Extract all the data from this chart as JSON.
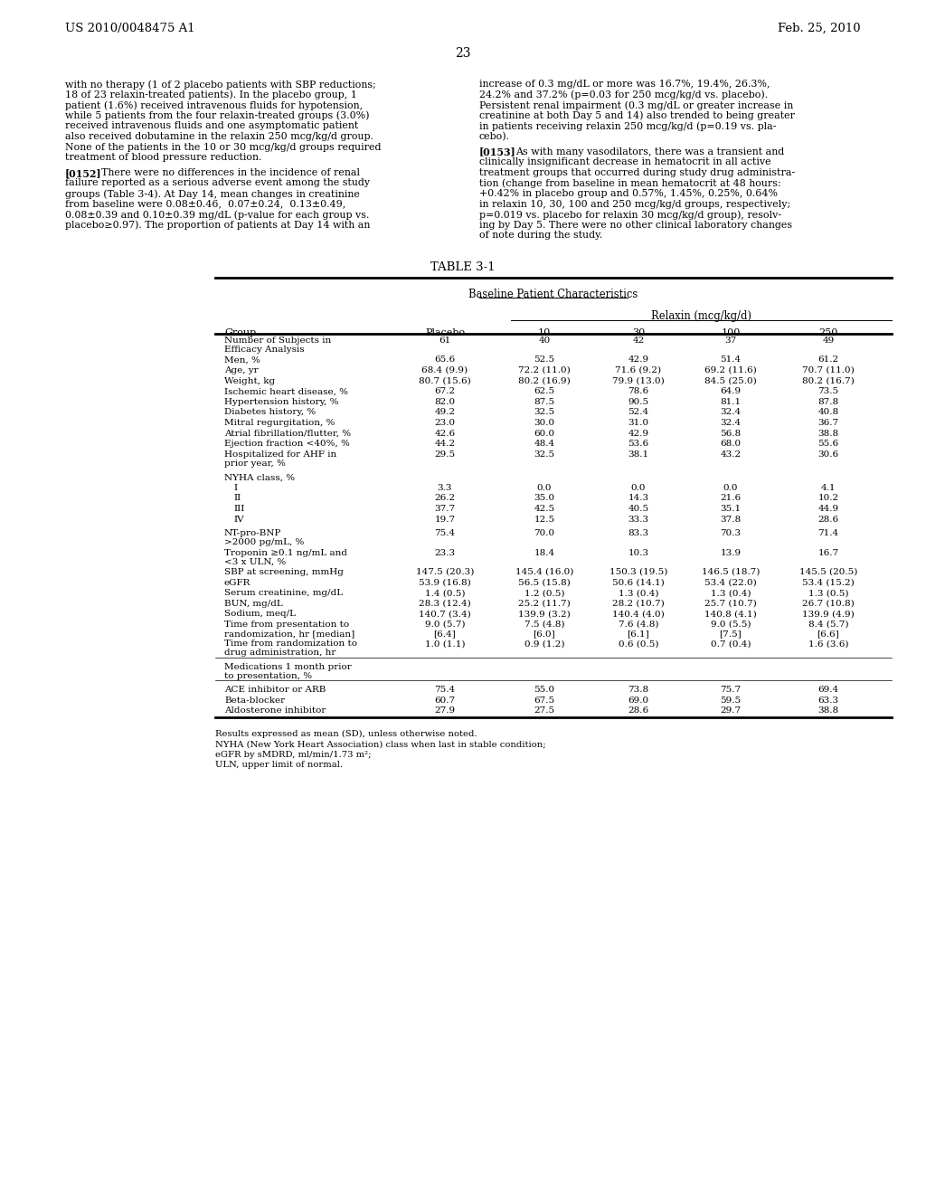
{
  "header_left": "US 2010/0048475 A1",
  "header_right": "Feb. 25, 2010",
  "page_number": "23",
  "para1_lines": [
    "with no therapy (1 of 2 placebo patients with SBP reductions;",
    "18 of 23 relaxin-treated patients). In the placebo group, 1",
    "patient (1.6%) received intravenous fluids for hypotension,",
    "while 5 patients from the four relaxin-treated groups (3.0%)",
    "received intravenous fluids and one asymptomatic patient",
    "also received dobutamine in the relaxin 250 mcg/kg/d group.",
    "None of the patients in the 10 or 30 mcg/kg/d groups required",
    "treatment of blood pressure reduction."
  ],
  "para2_tag": "[0152]",
  "para2_lines": [
    "There were no differences in the incidence of renal",
    "failure reported as a serious adverse event among the study",
    "groups (Table 3-4). At Day 14, mean changes in creatinine",
    "from baseline were 0.08±0.46,  0.07±0.24,  0.13±0.49,",
    "0.08±0.39 and 0.10±0.39 mg/dL (p-value for each group vs.",
    "placebo≥0.97). The proportion of patients at Day 14 with an"
  ],
  "para3_lines": [
    "increase of 0.3 mg/dL or more was 16.7%, 19.4%, 26.3%,",
    "24.2% and 37.2% (p=0.03 for 250 mcg/kg/d vs. placebo).",
    "Persistent renal impairment (0.3 mg/dL or greater increase in",
    "creatinine at both Day 5 and 14) also trended to being greater",
    "in patients receiving relaxin 250 mcg/kg/d (p=0.19 vs. pla-",
    "cebo)."
  ],
  "para4_tag": "[0153]",
  "para4_lines": [
    "As with many vasodilators, there was a transient and",
    "clinically insignificant decrease in hematocrit in all active",
    "treatment groups that occurred during study drug administra-",
    "tion (change from baseline in mean hematocrit at 48 hours:",
    "+0.42% in placebo group and 0.57%, 1.45%, 0.25%, 0.64%",
    "in relaxin 10, 30, 100 and 250 mcg/kg/d groups, respectively;",
    "p=0.019 vs. placebo for relaxin 30 mcg/kg/d group), resolv-",
    "ing by Day 5. There were no other clinical laboratory changes",
    "of note during the study."
  ],
  "table_title": "TABLE 3-1",
  "table_subtitle": "Baseline Patient Characteristics",
  "table_col_header1": "Relaxin (mcg/kg/d)",
  "col_headers": [
    "Group",
    "Placebo",
    "10",
    "30",
    "100",
    "250"
  ],
  "table_rows": [
    [
      "Number of Subjects in\nEfficacy Analysis",
      "61",
      "40",
      "42",
      "37",
      "49"
    ],
    [
      "Men, %",
      "65.6",
      "52.5",
      "42.9",
      "51.4",
      "61.2"
    ],
    [
      "Age, yr",
      "68.4 (9.9)",
      "72.2 (11.0)",
      "71.6 (9.2)",
      "69.2 (11.6)",
      "70.7 (11.0)"
    ],
    [
      "Weight, kg",
      "80.7 (15.6)",
      "80.2 (16.9)",
      "79.9 (13.0)",
      "84.5 (25.0)",
      "80.2 (16.7)"
    ],
    [
      "Ischemic heart disease, %",
      "67.2",
      "62.5",
      "78.6",
      "64.9",
      "73.5"
    ],
    [
      "Hypertension history, %",
      "82.0",
      "87.5",
      "90.5",
      "81.1",
      "87.8"
    ],
    [
      "Diabetes history, %",
      "49.2",
      "32.5",
      "52.4",
      "32.4",
      "40.8"
    ],
    [
      "Mitral regurgitation, %",
      "23.0",
      "30.0",
      "31.0",
      "32.4",
      "36.7"
    ],
    [
      "Atrial fibrillation/flutter, %",
      "42.6",
      "60.0",
      "42.9",
      "56.8",
      "38.8"
    ],
    [
      "Ejection fraction <40%, %",
      "44.2",
      "48.4",
      "53.6",
      "68.0",
      "55.6"
    ],
    [
      "Hospitalized for AHF in\nprior year, %",
      "29.5",
      "32.5",
      "38.1",
      "43.2",
      "30.6"
    ],
    [
      "NYHA class, %",
      "",
      "",
      "",
      "",
      ""
    ],
    [
      "I",
      "3.3",
      "0.0",
      "0.0",
      "0.0",
      "4.1"
    ],
    [
      "II",
      "26.2",
      "35.0",
      "14.3",
      "21.6",
      "10.2"
    ],
    [
      "III",
      "37.7",
      "42.5",
      "40.5",
      "35.1",
      "44.9"
    ],
    [
      "IV",
      "19.7",
      "12.5",
      "33.3",
      "37.8",
      "28.6"
    ],
    [
      "NT-pro-BNP\n>2000 pg/mL, %",
      "75.4",
      "70.0",
      "83.3",
      "70.3",
      "71.4"
    ],
    [
      "Troponin ≥0.1 ng/mL and\n<3 x ULN, %",
      "23.3",
      "18.4",
      "10.3",
      "13.9",
      "16.7"
    ],
    [
      "SBP at screening, mmHg",
      "147.5 (20.3)",
      "145.4 (16.0)",
      "150.3 (19.5)",
      "146.5 (18.7)",
      "145.5 (20.5)"
    ],
    [
      "eGFR",
      "53.9 (16.8)",
      "56.5 (15.8)",
      "50.6 (14.1)",
      "53.4 (22.0)",
      "53.4 (15.2)"
    ],
    [
      "Serum creatinine, mg/dL",
      "1.4 (0.5)",
      "1.2 (0.5)",
      "1.3 (0.4)",
      "1.3 (0.4)",
      "1.3 (0.5)"
    ],
    [
      "BUN, mg/dL",
      "28.3 (12.4)",
      "25.2 (11.7)",
      "28.2 (10.7)",
      "25.7 (10.7)",
      "26.7 (10.8)"
    ],
    [
      "Sodium, meq/L",
      "140.7 (3.4)",
      "139.9 (3.2)",
      "140.4 (4.0)",
      "140.8 (4.1)",
      "139.9 (4.9)"
    ],
    [
      "Time from presentation to\nrandomization, hr [median]",
      "9.0 (5.7)\n[6.4]",
      "7.5 (4.8)\n[6.0]",
      "7.6 (4.8)\n[6.1]",
      "9.0 (5.5)\n[7.5]",
      "8.4 (5.7)\n[6.6]"
    ],
    [
      "Time from randomization to\ndrug administration, hr",
      "1.0 (1.1)",
      "0.9 (1.2)",
      "0.6 (0.5)",
      "0.7 (0.4)",
      "1.6 (3.6)"
    ],
    [
      "Medications 1 month prior\nto presentation, %",
      "",
      "",
      "",
      "",
      ""
    ],
    [
      "ACE inhibitor or ARB",
      "75.4",
      "55.0",
      "73.8",
      "75.7",
      "69.4"
    ],
    [
      "Beta-blocker",
      "60.7",
      "67.5",
      "69.0",
      "59.5",
      "63.3"
    ],
    [
      "Aldosterone inhibitor",
      "27.9",
      "27.5",
      "28.6",
      "29.7",
      "38.8"
    ]
  ],
  "footnotes": [
    "Results expressed as mean (SD), unless otherwise noted.",
    "NYHA (New York Heart Association) class when last in stable condition;",
    "eGFR by sMDRD, ml/min/1.73 m²;",
    "ULN, upper limit of normal."
  ],
  "bg_color": "#ffffff",
  "text_color": "#000000"
}
